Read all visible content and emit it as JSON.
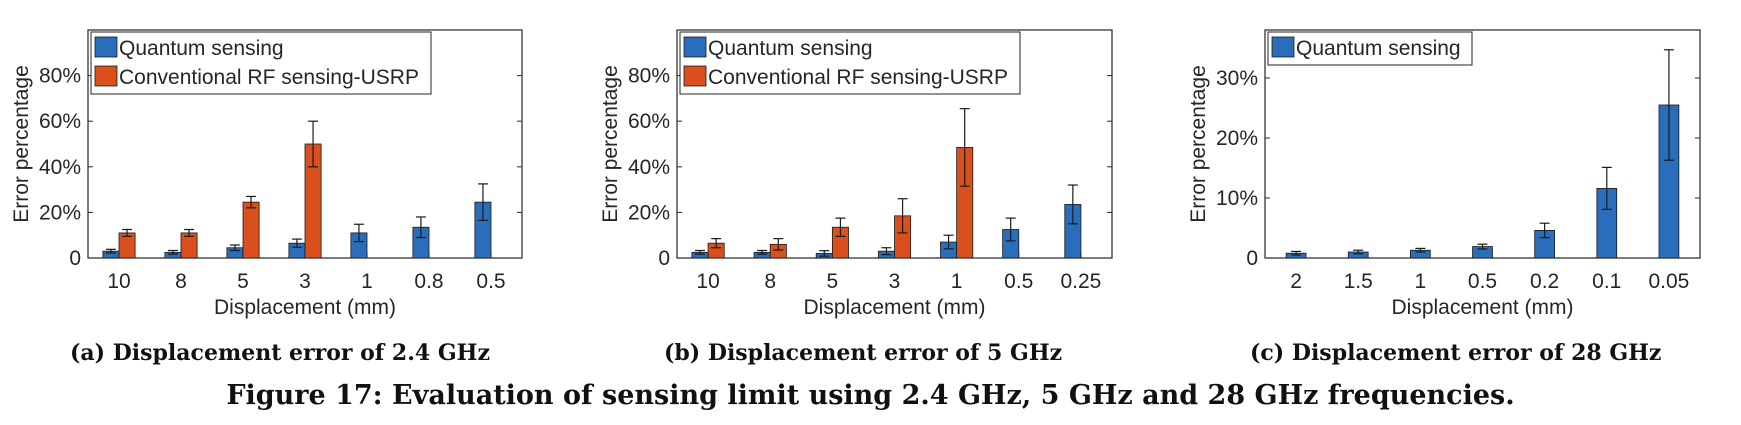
{
  "colors": {
    "quantum": "#2a6ebb",
    "conventional": "#d9501e"
  },
  "figure_caption": "Figure 17: Evaluation of sensing limit using 2.4 GHz, 5 GHz and 28 GHz frequencies.",
  "chart_data": [
    {
      "type": "bar",
      "caption": "(a) Displacement error of 2.4 GHz",
      "xlabel": "Displacement (mm)",
      "ylabel": "Error percentage",
      "ylim": [
        0,
        100
      ],
      "yticks": [
        0,
        20,
        40,
        60,
        80
      ],
      "ytick_labels": [
        "0",
        "20%",
        "40%",
        "60%",
        "80%"
      ],
      "categories": [
        "10",
        "8",
        "5",
        "3",
        "1",
        "0.8",
        "0.5"
      ],
      "legend_position": "top-left",
      "series": [
        {
          "name": "Quantum sensing",
          "color_key": "quantum",
          "values": [
            3,
            2.5,
            4.5,
            6.5,
            11,
            13.5,
            24.5
          ],
          "errors": [
            0.8,
            0.8,
            1.2,
            1.8,
            3.8,
            4.5,
            8
          ]
        },
        {
          "name": "Conventional RF sensing-USRP",
          "color_key": "conventional",
          "values": [
            11,
            11,
            24.5,
            50,
            null,
            null,
            null
          ],
          "errors": [
            1.5,
            1.5,
            2.5,
            10,
            null,
            null,
            null
          ]
        }
      ]
    },
    {
      "type": "bar",
      "caption": "(b) Displacement error of 5 GHz",
      "xlabel": "Displacement (mm)",
      "ylabel": "Error percentage",
      "ylim": [
        0,
        100
      ],
      "yticks": [
        0,
        20,
        40,
        60,
        80
      ],
      "ytick_labels": [
        "0",
        "20%",
        "40%",
        "60%",
        "80%"
      ],
      "categories": [
        "10",
        "8",
        "5",
        "3",
        "1",
        "0.5",
        "0.25"
      ],
      "legend_position": "top-left",
      "series": [
        {
          "name": "Quantum sensing",
          "color_key": "quantum",
          "values": [
            2.5,
            2.5,
            2,
            3,
            7,
            12.5,
            23.5
          ],
          "errors": [
            0.8,
            0.8,
            1.2,
            1.5,
            3,
            5,
            8.5
          ]
        },
        {
          "name": "Conventional RF sensing-USRP",
          "color_key": "conventional",
          "values": [
            6.5,
            6,
            13.5,
            18.5,
            48.5,
            null,
            null
          ],
          "errors": [
            2,
            2.5,
            4,
            7.5,
            17,
            null,
            null
          ]
        }
      ]
    },
    {
      "type": "bar",
      "caption": "(c) Displacement error of 28 GHz",
      "xlabel": "Displacement (mm)",
      "ylabel": "Error percentage",
      "ylim": [
        0,
        38
      ],
      "yticks": [
        0,
        10,
        20,
        30
      ],
      "ytick_labels": [
        "0",
        "10%",
        "20%",
        "30%"
      ],
      "categories": [
        "2",
        "1.5",
        "1",
        "0.5",
        "0.2",
        "0.1",
        "0.05"
      ],
      "legend_position": "top-left",
      "series": [
        {
          "name": "Quantum sensing",
          "color_key": "quantum",
          "values": [
            0.8,
            1,
            1.3,
            1.9,
            4.6,
            11.6,
            25.5
          ],
          "errors": [
            0.3,
            0.3,
            0.3,
            0.4,
            1.2,
            3.5,
            9.2
          ]
        }
      ]
    }
  ]
}
